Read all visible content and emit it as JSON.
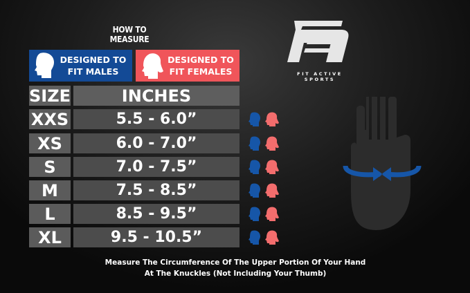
{
  "title": "HOW TO MEASURE",
  "brand": {
    "name": "FIT ACTIVE SPORTS",
    "logo_letters": "FA"
  },
  "badges": {
    "male": {
      "line1": "DESIGNED TO",
      "line2": "FIT MALES",
      "color": "#134a96",
      "icon": "male-head-icon"
    },
    "female": {
      "line1": "DESIGNED TO",
      "line2": "FIT FEMALES",
      "color": "#f0555a",
      "icon": "female-head-icon"
    }
  },
  "table": {
    "headers": {
      "size": "SIZE",
      "inches": "INCHES"
    },
    "rows": [
      {
        "size": "XXS",
        "inches": "5.5 - 6.0”"
      },
      {
        "size": "XS",
        "inches": "6.0 - 7.0”"
      },
      {
        "size": "S",
        "inches": "7.0 - 7.5”"
      },
      {
        "size": "M",
        "inches": "7.5 - 8.5”"
      },
      {
        "size": "L",
        "inches": "8.5 - 9.5”"
      },
      {
        "size": "XL",
        "inches": "9.5 - 10.5”"
      }
    ]
  },
  "footer": {
    "line1": "Measure The Circumference Of The Upper Portion Of Your Hand",
    "line2": "At The Knuckles (Not Including Your Thumb)"
  }
}
